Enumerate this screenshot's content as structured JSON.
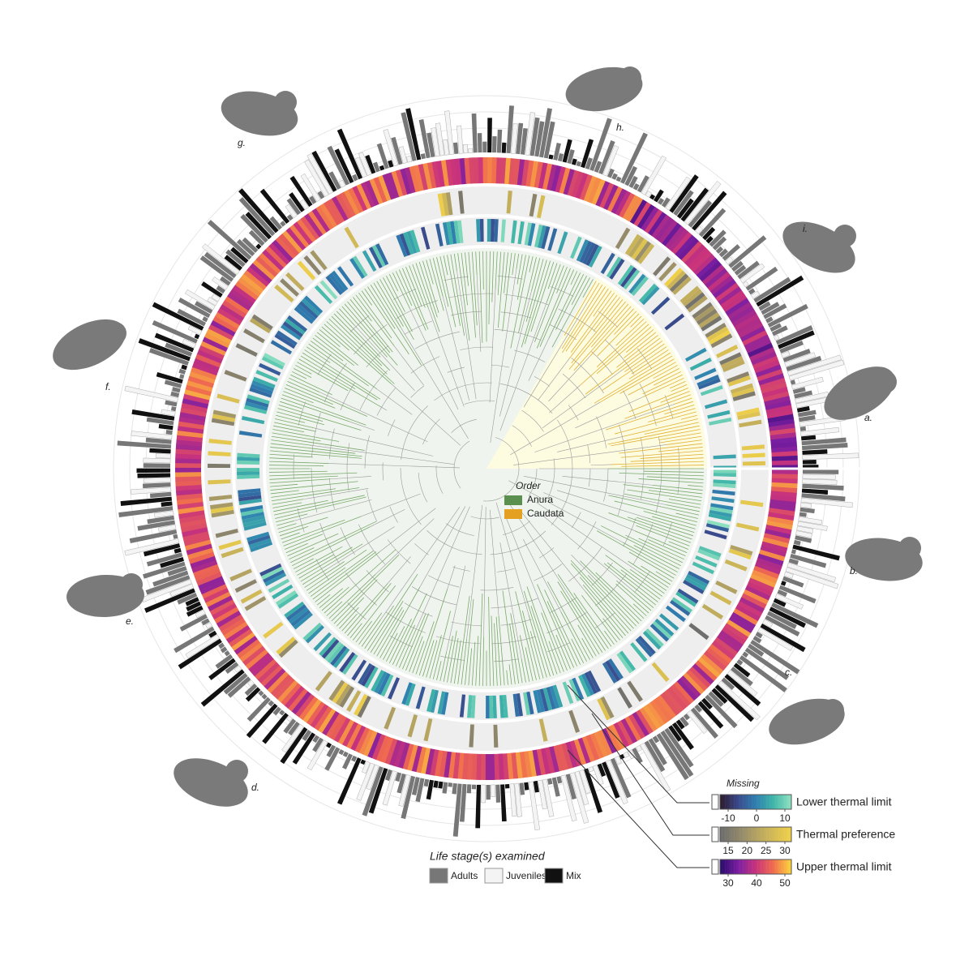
{
  "order_legend": {
    "title": "Order",
    "items": [
      "Anura",
      "Caudata"
    ]
  },
  "colorbars": [
    {
      "label": "Lower thermal limit",
      "ticks": [
        -10,
        0,
        10
      ]
    },
    {
      "label": "Thermal preference",
      "ticks": [
        15,
        20,
        25,
        30
      ]
    },
    {
      "label": "Upper thermal limit",
      "ticks": [
        30,
        40,
        50
      ]
    }
  ],
  "missing_label": "Missing",
  "life_stage_legend": {
    "title": "Life stage(s) examined",
    "items": [
      "Adults",
      "Juveniles",
      "Mix"
    ]
  },
  "silhouettes": [
    "a.",
    "b.",
    "c.",
    "d.",
    "e.",
    "f.",
    "g.",
    "h.",
    "i."
  ]
}
